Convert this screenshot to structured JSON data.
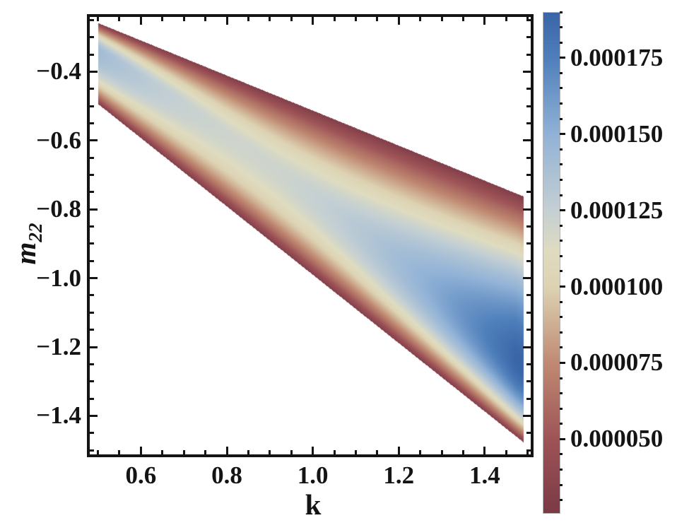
{
  "figure": {
    "background": "#ffffff",
    "frame_color": "#141414",
    "text_color": "#141414"
  },
  "chart_data": {
    "type": "heatmap",
    "title": "",
    "xlabel": "k",
    "ylabel_base": "m",
    "ylabel_sub": "22",
    "grid": false,
    "legend_position": "right-colorbar",
    "x_range": [
      0.481,
      1.507
    ],
    "y_range_top_bottom": [
      -0.241,
      -1.512
    ],
    "x_ticks_major": [
      0.6,
      0.8,
      1.0,
      1.2,
      1.4
    ],
    "x_tick_labels": [
      "0.6",
      "0.8",
      "1.0",
      "1.2",
      "1.4"
    ],
    "x_minor_start": 0.5,
    "x_minor_step": 0.05,
    "x_minor_end": 1.5,
    "y_ticks_major": [
      -0.4,
      -0.6,
      -0.8,
      -1.0,
      -1.2,
      -1.4
    ],
    "y_tick_labels": [
      "−0.4",
      "−0.6",
      "−0.8",
      "−1.0",
      "−1.2",
      "−1.4"
    ],
    "y_minor_start": -0.25,
    "y_minor_step": -0.05,
    "y_minor_end": -1.5,
    "band": {
      "description": "Colored diagonal band: allowed region between two nearly straight lines in (k, m22); value is low (dark red ~3e-5) at both band edges and peaks along an interior ridge.",
      "k_min": 0.5,
      "k_max": 1.49,
      "upper_boundary_m22": {
        "slope": -0.509,
        "intercept": -0.003
      },
      "lower_boundary_m22": {
        "slope": -0.993,
        "intercept": 0.004
      },
      "edge_value": 3e-05,
      "ridge": {
        "t_at_kmin": 0.68,
        "t_slope_per_k": -0.364,
        "value_poly_k2_k1_k0": [
          0.0001794,
          -0.0003046,
          0.0002495
        ],
        "value_max_clamp": 0.00019
      },
      "profile_exponent_above": 1.6,
      "profile_exponent_below": 2.4
    },
    "sample_points": [
      {
        "k": 0.52,
        "m22": -0.38,
        "value": 0.00014
      },
      {
        "k": 0.95,
        "m22": -0.72,
        "value": 0.000122
      },
      {
        "k": 1.2,
        "m22": -1.0,
        "value": 0.00015
      },
      {
        "k": 1.45,
        "m22": -1.25,
        "value": 0.000185
      },
      {
        "k": 1.0,
        "m22": -0.515,
        "value": 3e-05
      },
      {
        "k": 1.0,
        "m22": -0.99,
        "value": 3e-05
      }
    ],
    "colormap_stops": [
      [
        2.6e-05,
        "#7c3a47"
      ],
      [
        5e-05,
        "#9e5457"
      ],
      [
        7.5e-05,
        "#c08a72"
      ],
      [
        0.0001,
        "#ddd3b3"
      ],
      [
        0.000112,
        "#dfdcc0"
      ],
      [
        0.000125,
        "#c5d0d3"
      ],
      [
        0.00015,
        "#92b3d7"
      ],
      [
        0.000175,
        "#5080bc"
      ],
      [
        0.00019,
        "#3a66a8"
      ]
    ],
    "colorbar": {
      "v_min": 2.6e-05,
      "v_max": 0.00019,
      "tick_values": [
        0.000175,
        0.00015,
        0.000125,
        0.0001,
        7.5e-05,
        5e-05
      ],
      "tick_labels": [
        "0.000175",
        "0.000150",
        "0.000125",
        "0.000100",
        "0.000075",
        "0.000050"
      ],
      "minor_step": 5e-06
    }
  }
}
